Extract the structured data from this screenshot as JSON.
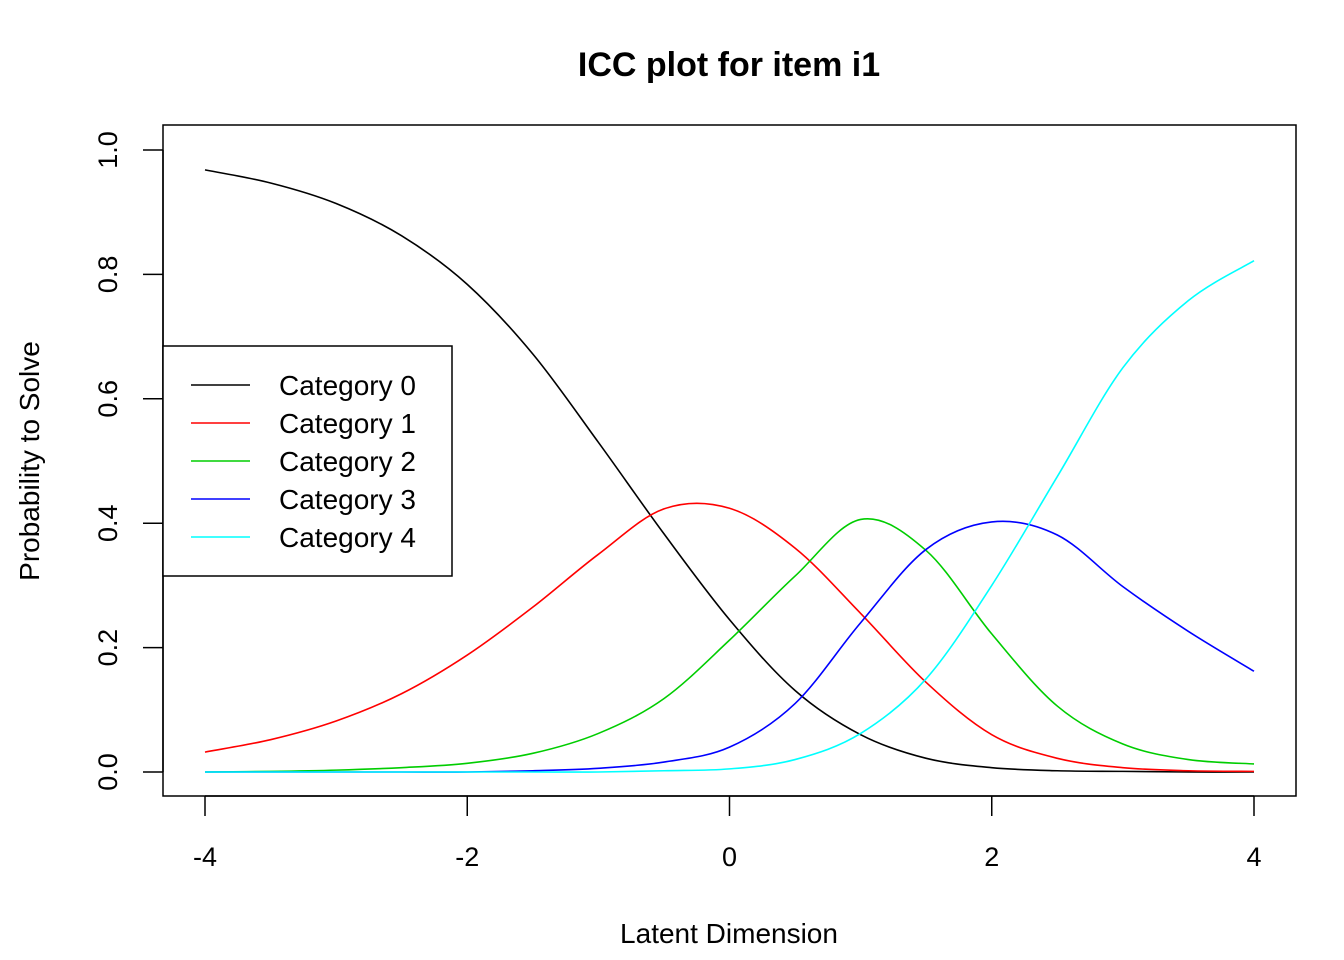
{
  "chart_data": {
    "type": "line",
    "title": "ICC plot for item i1",
    "xlabel": "Latent Dimension",
    "ylabel": "Probability to Solve",
    "xlim": [
      -4,
      4
    ],
    "ylim": [
      0.0,
      1.0
    ],
    "x_ticks": [
      "-4",
      "-2",
      "0",
      "2",
      "4"
    ],
    "y_ticks": [
      "0.0",
      "0.2",
      "0.4",
      "0.6",
      "0.8",
      "1.0"
    ],
    "grid": false,
    "legend_position": "left",
    "x": [
      -4.0,
      -3.5,
      -3.0,
      -2.5,
      -2.0,
      -1.5,
      -1.0,
      -0.5,
      0.0,
      0.5,
      1.0,
      1.5,
      2.0,
      2.5,
      3.0,
      3.5,
      4.0
    ],
    "series": [
      {
        "name": "Category 0",
        "color": "#000000",
        "values": [
          0.968,
          0.947,
          0.914,
          0.862,
          0.784,
          0.672,
          0.53,
          0.383,
          0.245,
          0.131,
          0.06,
          0.022,
          0.007,
          0.002,
          0.001,
          0.0,
          0.0
        ]
      },
      {
        "name": "Category 1",
        "color": "#FF0000",
        "values": [
          0.032,
          0.052,
          0.082,
          0.126,
          0.188,
          0.265,
          0.35,
          0.423,
          0.424,
          0.36,
          0.255,
          0.144,
          0.06,
          0.022,
          0.007,
          0.002,
          0.001
        ]
      },
      {
        "name": "Category 2",
        "color": "#00CD00",
        "values": [
          0.0,
          0.001,
          0.003,
          0.007,
          0.014,
          0.03,
          0.062,
          0.118,
          0.212,
          0.315,
          0.406,
          0.356,
          0.222,
          0.106,
          0.045,
          0.02,
          0.013
        ]
      },
      {
        "name": "Category 3",
        "color": "#0000FF",
        "values": [
          0.0,
          0.0,
          0.0,
          0.0,
          0.0,
          0.002,
          0.006,
          0.016,
          0.04,
          0.11,
          0.24,
          0.358,
          0.402,
          0.381,
          0.298,
          0.226,
          0.162
        ]
      },
      {
        "name": "Category 4",
        "color": "#00FFFF",
        "values": [
          0.0,
          0.0,
          0.0,
          0.0,
          0.0,
          0.0,
          0.0,
          0.002,
          0.005,
          0.02,
          0.062,
          0.15,
          0.3,
          0.475,
          0.65,
          0.758,
          0.822
        ]
      }
    ]
  }
}
